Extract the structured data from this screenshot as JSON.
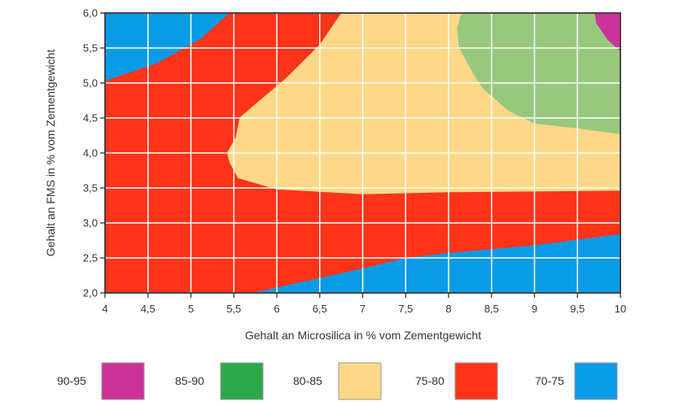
{
  "chart_data": {
    "type": "contour",
    "xlabel": "Gehalt an Microsilica in % vom Zementgewicht",
    "ylabel": "Gehalt an FMS in % vom Zementgewicht",
    "xlim": [
      4,
      10
    ],
    "ylim": [
      2.0,
      6.0
    ],
    "x_ticks": [
      "4",
      "4,5",
      "5",
      "5,5",
      "6",
      "6,5",
      "7",
      "7,5",
      "8",
      "8,5",
      "9",
      "9,5",
      "10"
    ],
    "y_ticks": [
      "2,0",
      "2,5",
      "3,0",
      "3,5",
      "4,0",
      "4,5",
      "5,0",
      "5,5",
      "6,0"
    ],
    "grid": true,
    "legend_position": "bottom",
    "legend": [
      {
        "label": "90-95",
        "color": "#cc3399"
      },
      {
        "label": "85-90",
        "color": "#2ea84a"
      },
      {
        "label": "80-85",
        "color": "#fdd888"
      },
      {
        "label": "75-80",
        "color": "#ff3419"
      },
      {
        "label": "70-75",
        "color": "#0a9be6"
      }
    ],
    "background_zone": {
      "range": "75-80",
      "color": "#ff3419"
    },
    "zones": [
      {
        "range": "70-75",
        "color": "#0a9be6",
        "boundary": [
          [
            4.0,
            6.0
          ],
          [
            5.45,
            6.0
          ],
          [
            5.1,
            5.62
          ],
          [
            4.6,
            5.28
          ],
          [
            4.0,
            5.03
          ]
        ]
      },
      {
        "range": "70-75",
        "color": "#0a9be6",
        "boundary": [
          [
            5.72,
            2.0
          ],
          [
            7.0,
            2.35
          ],
          [
            7.5,
            2.5
          ],
          [
            8.0,
            2.57
          ],
          [
            9.0,
            2.68
          ],
          [
            10.0,
            2.84
          ],
          [
            10.0,
            2.0
          ]
        ]
      },
      {
        "range": "80-85",
        "color": "#fdd888",
        "boundary": [
          [
            6.75,
            6.0
          ],
          [
            10.0,
            6.0
          ],
          [
            10.0,
            3.46
          ],
          [
            8.0,
            3.44
          ],
          [
            7.0,
            3.41
          ],
          [
            6.0,
            3.48
          ],
          [
            5.55,
            3.64
          ],
          [
            5.45,
            3.86
          ],
          [
            5.42,
            4.0
          ],
          [
            5.52,
            4.22
          ],
          [
            5.57,
            4.51
          ],
          [
            6.1,
            5.06
          ],
          [
            6.5,
            5.55
          ]
        ]
      },
      {
        "range": "85-90",
        "color": "#97c87d",
        "boundary": [
          [
            8.15,
            6.0
          ],
          [
            10.0,
            6.0
          ],
          [
            10.0,
            4.27
          ],
          [
            9.5,
            4.35
          ],
          [
            9.0,
            4.42
          ],
          [
            8.7,
            4.6
          ],
          [
            8.4,
            4.92
          ],
          [
            8.3,
            5.1
          ],
          [
            8.12,
            5.51
          ],
          [
            8.1,
            5.79
          ]
        ]
      },
      {
        "range": "90-95",
        "color": "#cc3399",
        "boundary": [
          [
            9.7,
            6.0
          ],
          [
            10.0,
            6.0
          ],
          [
            10.0,
            5.45
          ],
          [
            9.85,
            5.62
          ],
          [
            9.72,
            5.85
          ]
        ]
      }
    ]
  }
}
